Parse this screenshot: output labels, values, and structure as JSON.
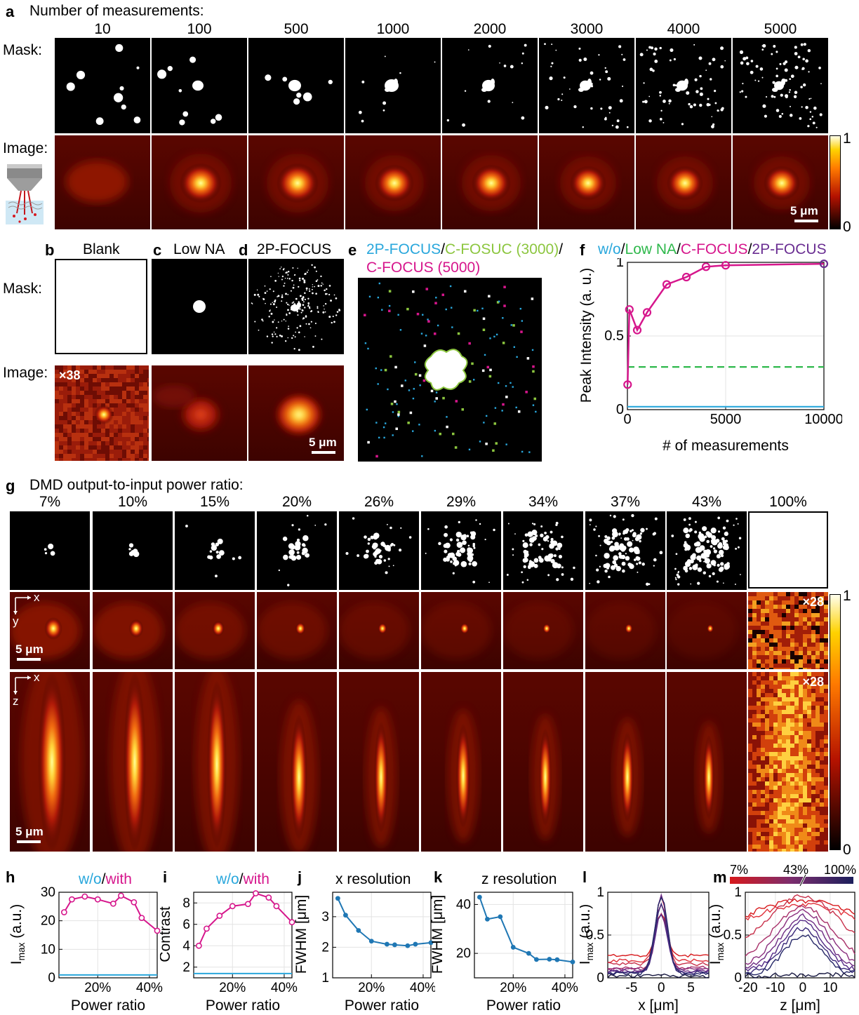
{
  "panel_letters": {
    "a": "a",
    "b": "b",
    "c": "c",
    "d": "d",
    "e": "e",
    "f": "f",
    "g": "g",
    "h": "h",
    "i": "i",
    "j": "j",
    "k": "k",
    "l": "l",
    "m": "m"
  },
  "a": {
    "heading": "Number of measurements:",
    "mask_label": "Mask:",
    "image_label": "Image:",
    "counts": [
      "10",
      "100",
      "500",
      "1000",
      "2000",
      "3000",
      "4000",
      "5000"
    ],
    "scale_bar": "5 μm",
    "colorbar_max": "1",
    "colorbar_min": "0"
  },
  "bcd": {
    "mask_label": "Mask:",
    "image_label": "Image:",
    "b_title": "Blank",
    "c_title": "Low NA",
    "d_title": "2P-FOCUS",
    "b_gain": "×38",
    "scale_bar": "5 μm"
  },
  "e": {
    "title_2p": "2P-FOCUS",
    "sep1": "/",
    "title_c3000": "C-FOSUC (3000)",
    "sep2": "/",
    "title_c5000": "C-FOCUS (5000)"
  },
  "f": {
    "legend_wo": "w/o",
    "legend_sep1": "/",
    "legend_lowna": "Low NA",
    "legend_sep2": "/",
    "legend_cfocus": "C-FOCUS",
    "legend_sep3": "/",
    "legend_2p": "2P-FOCUS",
    "ylabel": "Peak Intensity (a. u.)",
    "xlabel": "# of measurements"
  },
  "g": {
    "heading": "DMD output-to-input power ratio:",
    "ratios": [
      "7%",
      "10%",
      "15%",
      "20%",
      "26%",
      "29%",
      "34%",
      "37%",
      "43%",
      "100%"
    ],
    "gain": "×28",
    "axis_x": "x",
    "axis_y": "y",
    "axis_z": "z",
    "scale_bar": "5 μm",
    "colorbar_max": "1",
    "colorbar_min": "0"
  },
  "h": {
    "title_wo": "w/o",
    "title_sep": "/",
    "title_with": "with",
    "ylabel": "I",
    "ylabel_sub": "max",
    "ylabel_unit": " (a.u.)",
    "xlabel": "Power ratio"
  },
  "i": {
    "title_wo": "w/o",
    "title_sep": "/",
    "title_with": "with",
    "ylabel": "Contrast",
    "xlabel": "Power ratio"
  },
  "j": {
    "title": "x resolution",
    "ylabel": "FWHM [μm]",
    "xlabel": "Power ratio"
  },
  "k": {
    "title": "z resolution",
    "ylabel": "FWHM [μm]",
    "xlabel": "Power ratio"
  },
  "l": {
    "ylabel": "I",
    "ylabel_sub": "max",
    "ylabel_unit": " (a.u.)",
    "xlabel": "x [μm]"
  },
  "m": {
    "ylabel": "I",
    "ylabel_sub": "max",
    "ylabel_unit": " (a.u.)",
    "xlabel": "z [μm]",
    "cb_left": "7%",
    "cb_mid": "43%",
    "cb_right": "100%"
  },
  "colors": {
    "wo": "#29a7dc",
    "lowna": "#2eb84b",
    "cfocus": "#d6168c",
    "p2focus": "#6a2e92",
    "line": "#1f77b4",
    "cfosuc": "#8cc63f"
  },
  "chart_data": [
    {
      "panel": "f",
      "type": "line",
      "xlabel": "# of measurements",
      "ylabel": "Peak Intensity (a. u.)",
      "xlim": [
        0,
        10000
      ],
      "ylim": [
        0,
        1
      ],
      "xticks": [
        "0",
        "5000",
        "10000"
      ],
      "yticks": [
        "0",
        "0.5",
        "1"
      ],
      "grid": true,
      "series": [
        {
          "name": "C-FOCUS",
          "x": [
            10,
            100,
            500,
            1000,
            2000,
            3000,
            4000,
            5000,
            10000
          ],
          "y": [
            0.17,
            0.68,
            0.54,
            0.66,
            0.85,
            0.9,
            0.97,
            0.98,
            0.99
          ]
        },
        {
          "name": "Low NA",
          "x": [
            0,
            10000
          ],
          "y": [
            0.29,
            0.29
          ]
        },
        {
          "name": "w/o",
          "x": [
            0,
            10000
          ],
          "y": [
            0.02,
            0.02
          ]
        }
      ]
    },
    {
      "panel": "h",
      "type": "line",
      "xlabel": "Power ratio",
      "ylabel": "Imax (a.u.)",
      "xlim": [
        5,
        43
      ],
      "ylim": [
        0,
        30
      ],
      "xticks": [
        "20%",
        "40%"
      ],
      "yticks": [
        "0",
        "10",
        "20",
        "30"
      ],
      "series": [
        {
          "name": "with",
          "x": [
            7,
            10,
            15,
            20,
            26,
            29,
            34,
            37,
            43
          ],
          "y": [
            23,
            27.5,
            28.5,
            27.5,
            26,
            28.8,
            26.5,
            21,
            16.5
          ]
        },
        {
          "name": "w/o",
          "x": [
            5,
            43
          ],
          "y": [
            1,
            1
          ]
        }
      ]
    },
    {
      "panel": "i",
      "type": "line",
      "xlabel": "Power ratio",
      "ylabel": "Contrast",
      "xlim": [
        5,
        43
      ],
      "ylim": [
        1,
        9
      ],
      "xticks": [
        "20%",
        "40%"
      ],
      "yticks": [
        "2",
        "4",
        "6",
        "8"
      ],
      "series": [
        {
          "name": "with",
          "x": [
            7,
            10,
            15,
            20,
            26,
            29,
            34,
            37,
            43
          ],
          "y": [
            4,
            5.6,
            6.8,
            7.7,
            7.9,
            8.9,
            8.5,
            7.7,
            6.2
          ]
        },
        {
          "name": "w/o",
          "x": [
            5,
            43
          ],
          "y": [
            1.4,
            1.4
          ]
        }
      ]
    },
    {
      "panel": "j",
      "type": "line",
      "xlabel": "Power ratio",
      "ylabel": "FWHM [μm]",
      "xlim": [
        5,
        43
      ],
      "ylim": [
        1,
        3.8
      ],
      "xticks": [
        "20%",
        "40%"
      ],
      "yticks": [
        "1",
        "2",
        "3"
      ],
      "series": [
        {
          "x": [
            7,
            10,
            15,
            20,
            26,
            29,
            34,
            37,
            43
          ],
          "y": [
            3.6,
            3.05,
            2.55,
            2.2,
            2.1,
            2.08,
            2.05,
            2.1,
            2.15
          ]
        }
      ]
    },
    {
      "panel": "k",
      "type": "line",
      "xlabel": "Power ratio",
      "ylabel": "FWHM [μm]",
      "xlim": [
        5,
        43
      ],
      "ylim": [
        10,
        45
      ],
      "xticks": [
        "20%",
        "40%"
      ],
      "yticks": [
        "20",
        "40"
      ],
      "series": [
        {
          "x": [
            7,
            10,
            15,
            20,
            26,
            29,
            34,
            37,
            43
          ],
          "y": [
            43,
            34,
            35,
            22.5,
            20,
            17.5,
            17.6,
            17.4,
            16.5
          ]
        }
      ]
    },
    {
      "panel": "l",
      "type": "line",
      "xlabel": "x [μm]",
      "ylabel": "Imax (a.u.)",
      "xlim": [
        -9,
        8
      ],
      "ylim": [
        0,
        1
      ],
      "xticks": [
        "-5",
        "0",
        "5"
      ],
      "yticks": [
        "0",
        "0.5",
        "1"
      ]
    },
    {
      "panel": "m",
      "type": "line",
      "xlabel": "z [μm]",
      "ylabel": "Imax (a.u.)",
      "xlim": [
        -21,
        19
      ],
      "ylim": [
        0,
        1
      ],
      "xticks": [
        "-20",
        "-10",
        "0",
        "10"
      ],
      "yticks": [
        "0",
        "0.5",
        "1"
      ]
    }
  ]
}
